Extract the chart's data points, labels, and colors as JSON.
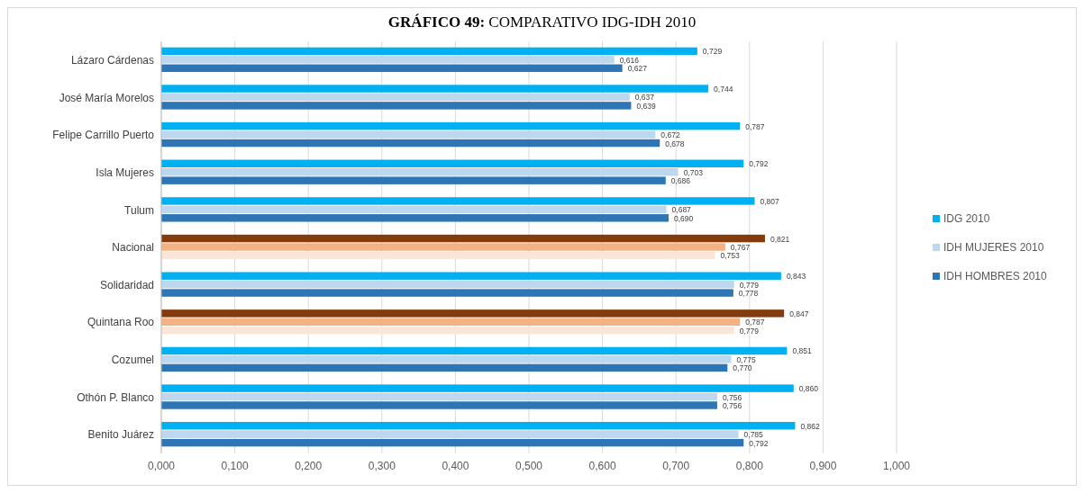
{
  "chart_data": {
    "type": "bar",
    "orientation": "horizontal",
    "title": "GRÁFICO 49: COMPARATIVO IDG-IDH 2010",
    "categories": [
      "Lázaro Cárdenas",
      "José María Morelos",
      "Felipe Carrillo Puerto",
      "Isla Mujeres",
      "Tulum",
      "Nacional",
      "Solidaridad",
      "Quintana Roo",
      "Cozumel",
      "Othón P. Blanco",
      "Benito Juárez"
    ],
    "series": [
      {
        "name": "IDG 2010",
        "color": "#00b0f0",
        "colors": [
          "#00b0f0",
          "#00b0f0",
          "#00b0f0",
          "#00b0f0",
          "#00b0f0",
          "#843c0c",
          "#00b0f0",
          "#843c0c",
          "#00b0f0",
          "#00b0f0",
          "#00b0f0"
        ],
        "values": [
          0.729,
          0.744,
          0.787,
          0.792,
          0.807,
          0.821,
          0.843,
          0.847,
          0.851,
          0.86,
          0.862
        ],
        "value_labels": [
          "0,729",
          "0,744",
          "0,787",
          "0,792",
          "0,807",
          "0,821",
          "0,843",
          "0,847",
          "0,851",
          "0,860",
          "0,862"
        ]
      },
      {
        "name": "IDH MUJERES 2010",
        "color": "#bdd7ee",
        "colors": [
          "#bdd7ee",
          "#bdd7ee",
          "#bdd7ee",
          "#bdd7ee",
          "#bdd7ee",
          "#f4b183",
          "#bdd7ee",
          "#f4b183",
          "#bdd7ee",
          "#bdd7ee",
          "#bdd7ee"
        ],
        "values": [
          0.616,
          0.637,
          0.672,
          0.703,
          0.687,
          0.767,
          0.779,
          0.787,
          0.775,
          0.756,
          0.785
        ],
        "value_labels": [
          "0,616",
          "0,637",
          "0,672",
          "0,703",
          "0,687",
          "0,767",
          "0,779",
          "0,787",
          "0,775",
          "0,756",
          "0,785"
        ]
      },
      {
        "name": "IDH HOMBRES 2010",
        "color": "#2e75b6",
        "colors": [
          "#2e75b6",
          "#2e75b6",
          "#2e75b6",
          "#2e75b6",
          "#2e75b6",
          "#fbe5d6",
          "#2e75b6",
          "#fbe5d6",
          "#2e75b6",
          "#2e75b6",
          "#2e75b6"
        ],
        "values": [
          0.627,
          0.639,
          0.678,
          0.686,
          0.69,
          0.753,
          0.778,
          0.779,
          0.77,
          0.756,
          0.792
        ],
        "value_labels": [
          "0,627",
          "0,639",
          "0,678",
          "0,686",
          "0,690",
          "0,753",
          "0,778",
          "0,779",
          "0,770",
          "0,756",
          "0,792"
        ]
      }
    ],
    "xlim": [
      0,
      1
    ],
    "xticks": [
      {
        "value": 0,
        "label": "0,000"
      },
      {
        "value": 0.1,
        "label": "0,100"
      },
      {
        "value": 0.2,
        "label": "0,200"
      },
      {
        "value": 0.3,
        "label": "0,300"
      },
      {
        "value": 0.4,
        "label": "0,400"
      },
      {
        "value": 0.5,
        "label": "0,500"
      },
      {
        "value": 0.6,
        "label": "0,600"
      },
      {
        "value": 0.7,
        "label": "0,700"
      },
      {
        "value": 0.8,
        "label": "0,800"
      },
      {
        "value": 0.9,
        "label": "0,900"
      },
      {
        "value": 1,
        "label": "1,000"
      }
    ],
    "grid": "x",
    "legend": "right"
  }
}
